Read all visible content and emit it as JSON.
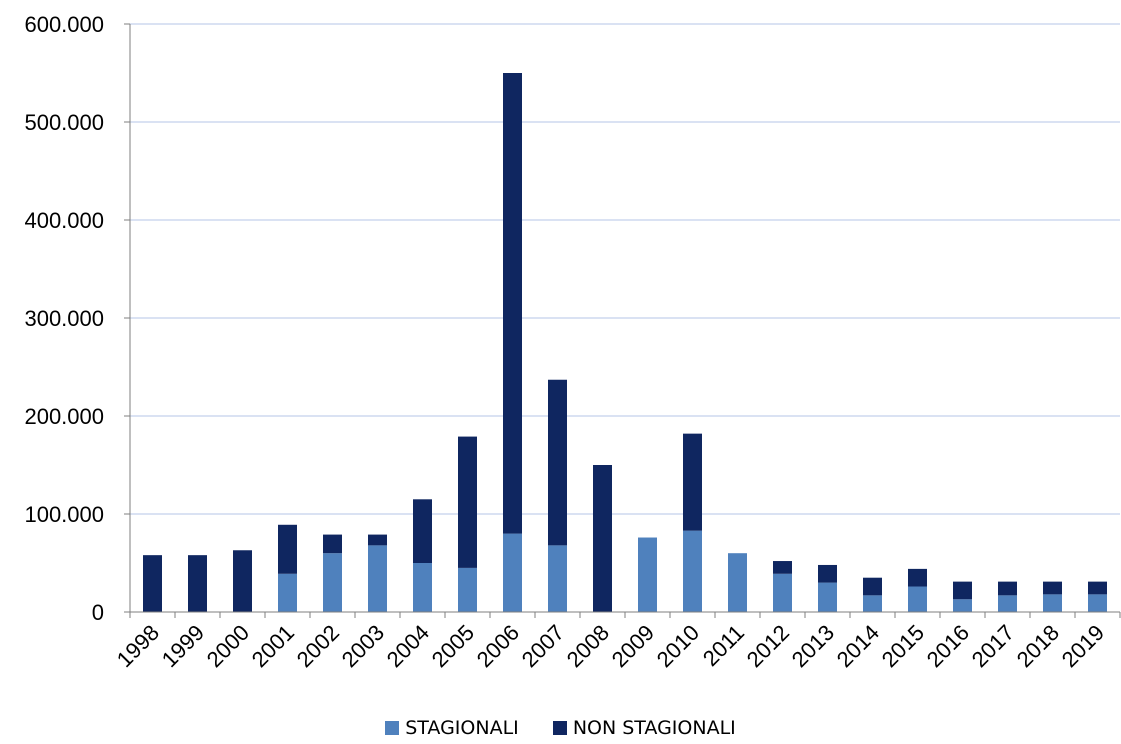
{
  "chart_data": {
    "type": "bar",
    "stacked": true,
    "title": "",
    "xlabel": "",
    "ylabel": "",
    "ylim": [
      0,
      600000
    ],
    "yticks": [
      0,
      100000,
      200000,
      300000,
      400000,
      500000,
      600000
    ],
    "ytick_labels": [
      "0",
      "100.000",
      "200.000",
      "300.000",
      "400.000",
      "500.000",
      "600.000"
    ],
    "grid": true,
    "legend_position": "bottom",
    "categories": [
      "1998",
      "1999",
      "2000",
      "2001",
      "2002",
      "2003",
      "2004",
      "2005",
      "2006",
      "2007",
      "2008",
      "2009",
      "2010",
      "2011",
      "2012",
      "2013",
      "2014",
      "2015",
      "2016",
      "2017",
      "2018",
      "2019"
    ],
    "series": [
      {
        "name": "STAGIONALI",
        "color": "#4f81bd",
        "values": [
          0,
          0,
          0,
          39000,
          60000,
          68000,
          50000,
          45000,
          80000,
          68000,
          0,
          76000,
          83000,
          60000,
          39000,
          30000,
          17000,
          26000,
          13000,
          17000,
          18000,
          18000
        ]
      },
      {
        "name": "NON STAGIONALI",
        "color": "#0f2660",
        "values": [
          58000,
          58000,
          63000,
          50000,
          19000,
          11000,
          65000,
          134000,
          470000,
          169000,
          150000,
          0,
          99000,
          0,
          13000,
          18000,
          18000,
          18000,
          18000,
          14000,
          13000,
          13000
        ]
      }
    ]
  },
  "legend": {
    "stagionali_label": "STAGIONALI",
    "non_stagionali_label": "NON STAGIONALI",
    "stagionali_color": "#4f81bd",
    "non_stagionali_color": "#0f2660"
  },
  "colors": {
    "grid": "#b4c6e7",
    "axis": "#7f7f7f"
  }
}
